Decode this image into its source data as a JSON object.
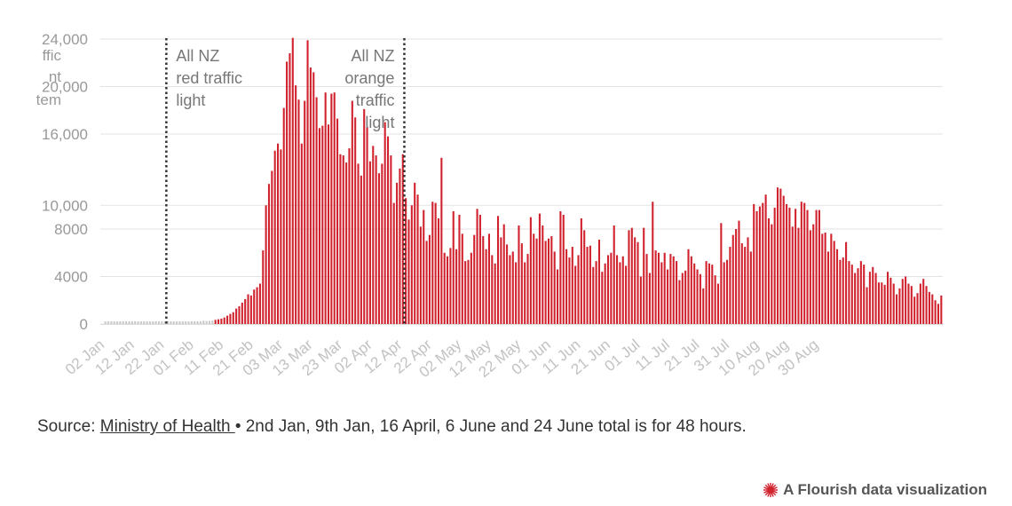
{
  "chart_data": {
    "type": "bar",
    "title": "",
    "xlabel": "",
    "ylabel": "",
    "ylim": [
      0,
      24000
    ],
    "y_ticks": [
      0,
      4000,
      8000,
      10000,
      16000,
      20000,
      24000
    ],
    "y_tick_labels": [
      "0",
      "4000",
      "8000",
      "10,000",
      "16,000",
      "20,000",
      "24,000"
    ],
    "y_axis_label_fragments": [
      "ffic",
      "nt",
      "tem"
    ],
    "x_tick_labels": [
      "02 Jan",
      "12 Jan",
      "22 Jan",
      "01 Feb",
      "11 Feb",
      "21 Feb",
      "03 Mar",
      "13 Mar",
      "23 Mar",
      "02 Apr",
      "12 Apr",
      "22 Apr",
      "02 May",
      "12 May",
      "22 May",
      "01 Jun",
      "11 Jun",
      "21 Jun",
      "01 Jul",
      "11 Jul",
      "21 Jul",
      "31 Jul",
      "10 Aug",
      "20 Aug",
      "30 Aug"
    ],
    "start_date": "2022-01-02",
    "end_date": "2022-08-30",
    "series": [
      {
        "color": "#d0212d",
        "values": [
          100,
          0,
          50,
          40,
          30,
          50,
          50,
          20,
          60,
          90,
          50,
          40,
          40,
          60,
          90,
          50,
          60,
          70,
          50,
          60,
          70,
          80,
          90,
          70,
          80,
          100,
          110,
          130,
          150,
          170,
          180,
          210,
          220,
          280,
          250,
          260,
          290,
          350,
          400,
          450,
          550,
          700,
          850,
          1000,
          1300,
          1500,
          1800,
          2100,
          2500,
          2400,
          2900,
          3100,
          3400,
          6200,
          10000,
          11800,
          12900,
          14600,
          15200,
          14700,
          18200,
          22100,
          22800,
          24100,
          20100,
          18900,
          15200,
          18800,
          23900,
          21600,
          21200,
          19100,
          16500,
          16700,
          19500,
          16800,
          19400,
          19500,
          17300,
          14300,
          14200,
          13600,
          14800,
          18800,
          17400,
          13500,
          12500,
          18100,
          16600,
          13700,
          15000,
          14200,
          12700,
          13500,
          17000,
          15800,
          14200,
          10200,
          11900,
          13100,
          14300,
          10600,
          8800,
          10000,
          11900,
          10900,
          8200,
          9600,
          7000,
          7500,
          10300,
          10200,
          8900,
          14000,
          6000,
          5700,
          6400,
          9500,
          6300,
          9200,
          7600,
          5300,
          5400,
          6000,
          7500,
          9700,
          9200,
          7400,
          6300,
          7600,
          5800,
          5100,
          9100,
          7300,
          8400,
          6700,
          5800,
          6100,
          5200,
          8300,
          6800,
          5200,
          5900,
          9000,
          7600,
          7200,
          9300,
          8300,
          7000,
          7200,
          7400,
          6100,
          4600,
          9500,
          9200,
          6300,
          5600,
          6500,
          4900,
          5800,
          8900,
          7900,
          6500,
          6600,
          4800,
          5300,
          7100,
          4400,
          5100,
          5800,
          6000,
          8300,
          5800,
          5200,
          5700,
          4900,
          7900,
          8100,
          7300,
          6900,
          4000,
          8100,
          5900,
          4300,
          10300,
          6200,
          6000,
          5200,
          6000,
          4600,
          5900,
          5700,
          5300,
          3700,
          4300,
          4500,
          6300,
          5700,
          5100,
          4600,
          4200,
          3000,
          5300,
          5100,
          5000,
          4100,
          3400,
          8500,
          5200,
          5400,
          6500,
          7500,
          8000,
          8700,
          6800,
          6500,
          7300,
          6100,
          10100,
          9500,
          9900,
          10200,
          10900,
          8900,
          8400,
          9800,
          11500,
          11400,
          10800,
          10100,
          9800,
          8200,
          9700,
          8100,
          10300,
          10200,
          9600,
          7900,
          8400,
          9600,
          9600,
          7600,
          7700,
          6100,
          7600,
          7000,
          6300,
          5400,
          5600,
          6900,
          5300,
          5000,
          4300,
          4700,
          5300,
          5000,
          3100,
          4400,
          4800,
          4300,
          3500,
          3500,
          3300,
          4400,
          3900,
          3400,
          2500,
          3000,
          3800,
          4000,
          3400,
          3200,
          2300,
          2600,
          3400,
          3800,
          3200,
          2700,
          2500,
          2000,
          1700,
          2400
        ]
      }
    ],
    "gaps_after_index": [
      148,
      171
    ],
    "annotations": [
      {
        "date": "2022-01-23",
        "lines": [
          "All NZ",
          "red traffic",
          "light"
        ]
      },
      {
        "date": "2022-04-13",
        "lines": [
          "All NZ",
          "orange",
          "traffic",
          "light"
        ]
      }
    ]
  },
  "source": {
    "prefix": "Source: ",
    "link_text": "Ministry of Health ",
    "note": " • 2nd Jan, 9th Jan, 16 April, 6 June and 24 June total is for 48 hours."
  },
  "branding": {
    "text": "A Flourish data visualization",
    "icon": "flourish-burst-icon",
    "icon_color": "#d0212d"
  }
}
